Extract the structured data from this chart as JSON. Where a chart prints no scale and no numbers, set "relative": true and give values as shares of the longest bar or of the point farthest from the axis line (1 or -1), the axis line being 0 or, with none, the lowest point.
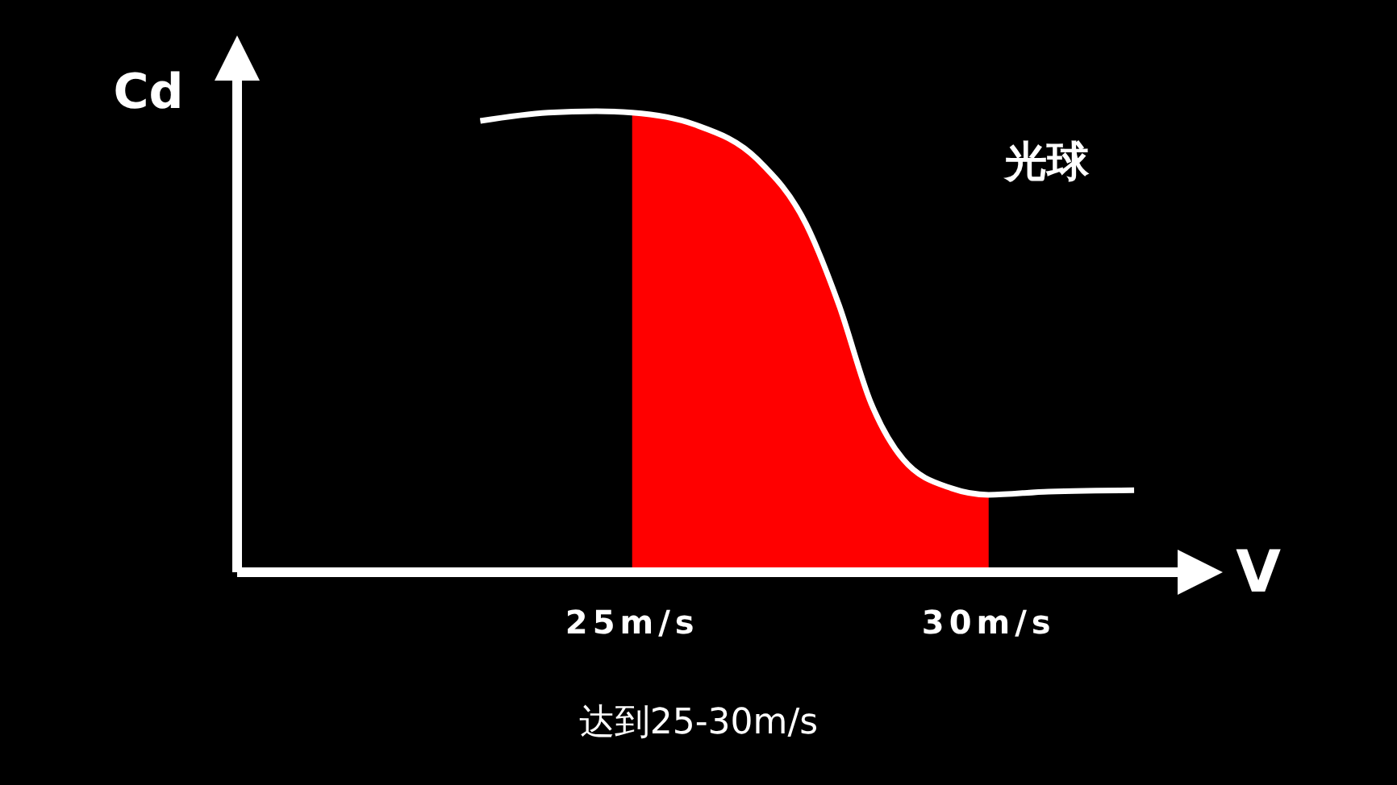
{
  "chart_data": {
    "type": "line",
    "relative": true,
    "xlabel": "V",
    "ylabel": "Cd",
    "xlim": [
      19.46,
      32.65
    ],
    "xticks": [
      {
        "value": 25,
        "label": "25m/s"
      },
      {
        "value": 30,
        "label": "30m/s"
      }
    ],
    "legend": false,
    "grid": false,
    "marker": "none",
    "annotations": [
      "达到25-30m/s"
    ],
    "series": [
      {
        "type": "area",
        "color": "#ff0000",
        "x": [
          25,
          25.86,
          26.76,
          27.44,
          27.9,
          28.35,
          28.8,
          29.48,
          30
        ],
        "values": [
          0.997,
          0.972,
          0.895,
          0.755,
          0.58,
          0.367,
          0.245,
          0.182,
          0.168
        ]
      },
      {
        "name": "光球",
        "color": "#ffffff",
        "x": [
          22.87,
          23.82,
          24.5,
          25,
          25.86,
          26.76,
          27.44,
          27.9,
          28.35,
          28.8,
          29.48,
          30,
          30.84,
          32.04
        ],
        "values": [
          0.979,
          0.997,
          1.0,
          0.997,
          0.972,
          0.895,
          0.755,
          0.58,
          0.367,
          0.245,
          0.182,
          0.168,
          0.175,
          0.178
        ]
      }
    ]
  }
}
